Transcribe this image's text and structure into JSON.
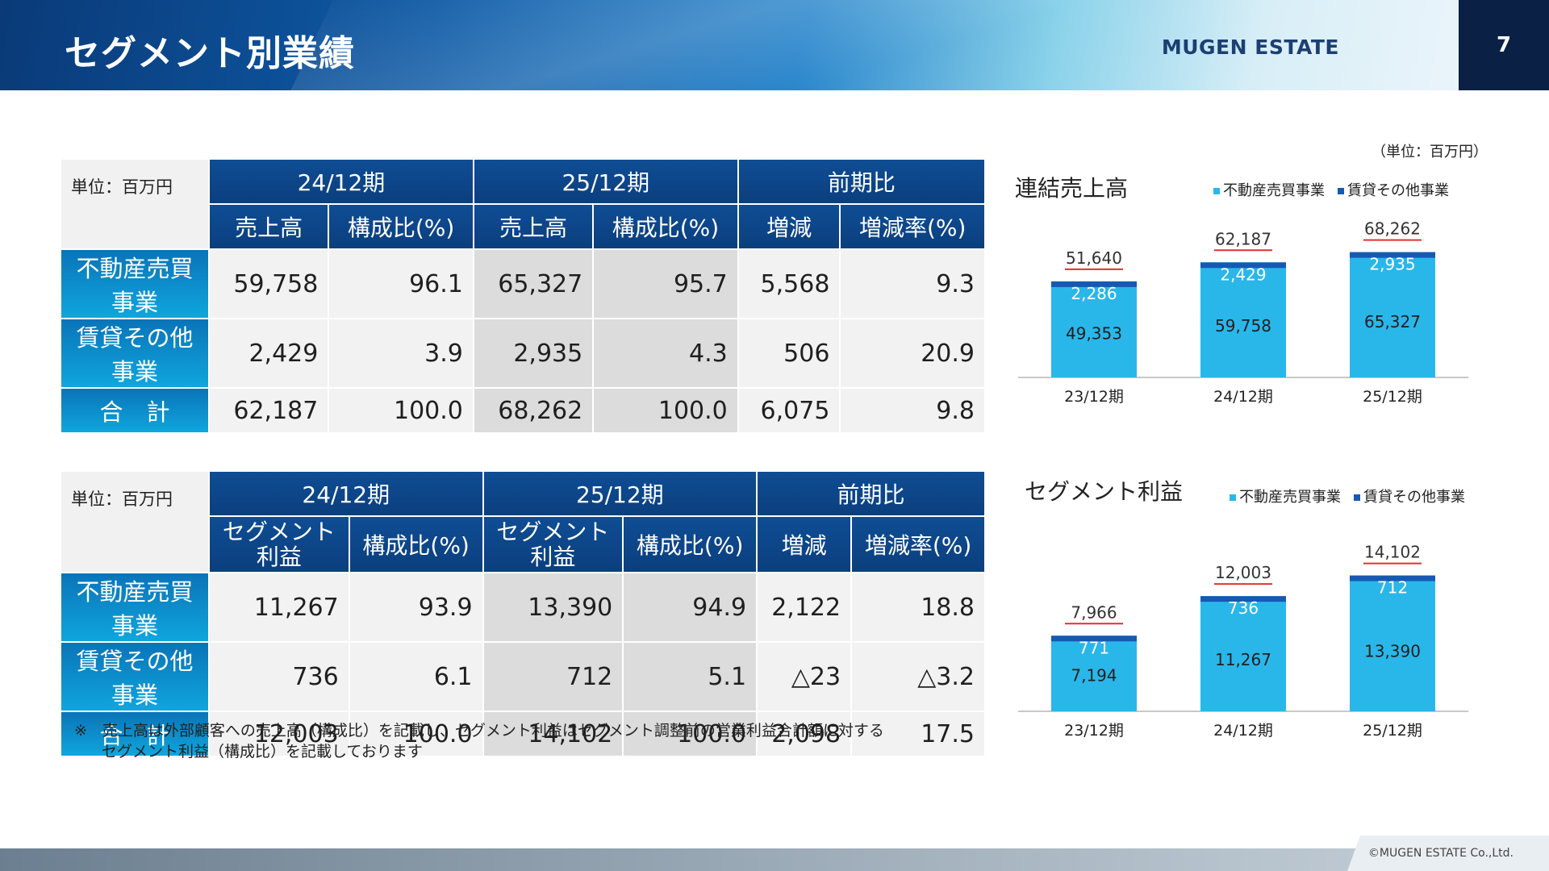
{
  "header": {
    "title": "セグメント別業績",
    "brand": "MUGEN ESTATE",
    "page_number": "7"
  },
  "sales_table": {
    "unit": "単位：百万円",
    "periods": [
      "24/12期",
      "25/12期",
      "前期比"
    ],
    "subheaders": [
      "売上高",
      "構成比(%)",
      "売上高",
      "構成比(%)",
      "増減",
      "増減率(%)"
    ],
    "rows": [
      {
        "label": "不動産売買事業",
        "values": [
          "59,758",
          "96.1",
          "65,327",
          "95.7",
          "5,568",
          "9.3"
        ]
      },
      {
        "label": "賃貸その他事業",
        "values": [
          "2,429",
          "3.9",
          "2,935",
          "4.3",
          "506",
          "20.9"
        ]
      },
      {
        "label": "合　計",
        "values": [
          "62,187",
          "100.0",
          "68,262",
          "100.0",
          "6,075",
          "9.8"
        ]
      }
    ]
  },
  "profit_table": {
    "unit": "単位：百万円",
    "periods": [
      "24/12期",
      "25/12期",
      "前期比"
    ],
    "subheaders": [
      "セグメント利益",
      "構成比(%)",
      "セグメント利益",
      "構成比(%)",
      "増減",
      "増減率(%)"
    ],
    "subheader_lines": {
      "a": "セグメント",
      "b": "利益"
    },
    "rows": [
      {
        "label": "不動産売買事業",
        "values": [
          "11,267",
          "93.9",
          "13,390",
          "94.9",
          "2,122",
          "18.8"
        ]
      },
      {
        "label": "賃貸その他事業",
        "values": [
          "736",
          "6.1",
          "712",
          "5.1",
          "△23",
          "△3.2"
        ]
      },
      {
        "label": "合　計",
        "values": [
          "12,003",
          "100.0",
          "14,102",
          "100.0",
          "2,098",
          "17.5"
        ]
      }
    ]
  },
  "note": {
    "line1": "※　売上高は外部顧客への売上高（構成比）を記載し、セグメント利益はセグメント調整前の営業利益合計額に対する",
    "line2": "セグメント利益（構成比）を記載しております"
  },
  "unit_right": "（単位：百万円）",
  "colors": {
    "bar_main": "#29b7ea",
    "bar_top": "#1659b3",
    "total_underline": "#e03030",
    "header_navy": "#0b2045"
  },
  "chart_data": [
    {
      "type": "bar",
      "title": "連結売上高",
      "categories": [
        "23/12期",
        "24/12期",
        "25/12期"
      ],
      "series": [
        {
          "name": "不動産売買事業",
          "values": [
            49353,
            59758,
            65327
          ],
          "labels": [
            "49,353",
            "59,758",
            "65,327"
          ]
        },
        {
          "name": "賃貸その他事業",
          "values": [
            2286,
            2429,
            2935
          ],
          "labels": [
            "2,286",
            "2,429",
            "2,935"
          ]
        }
      ],
      "totals": [
        "51,640",
        "62,187",
        "68,262"
      ],
      "stacked": true,
      "legend": "top-right"
    },
    {
      "type": "bar",
      "title": "セグメント利益",
      "categories": [
        "23/12期",
        "24/12期",
        "25/12期"
      ],
      "series": [
        {
          "name": "不動産売買事業",
          "values": [
            7194,
            11267,
            13390
          ],
          "labels": [
            "7,194",
            "11,267",
            "13,390"
          ]
        },
        {
          "name": "賃貸その他事業",
          "values": [
            771,
            736,
            712
          ],
          "labels": [
            "771",
            "736",
            "712"
          ]
        }
      ],
      "totals": [
        "7,966",
        "12,003",
        "14,102"
      ],
      "stacked": true,
      "legend": "top-right"
    }
  ],
  "footer": {
    "copyright": "©MUGEN ESTATE Co.,Ltd."
  }
}
